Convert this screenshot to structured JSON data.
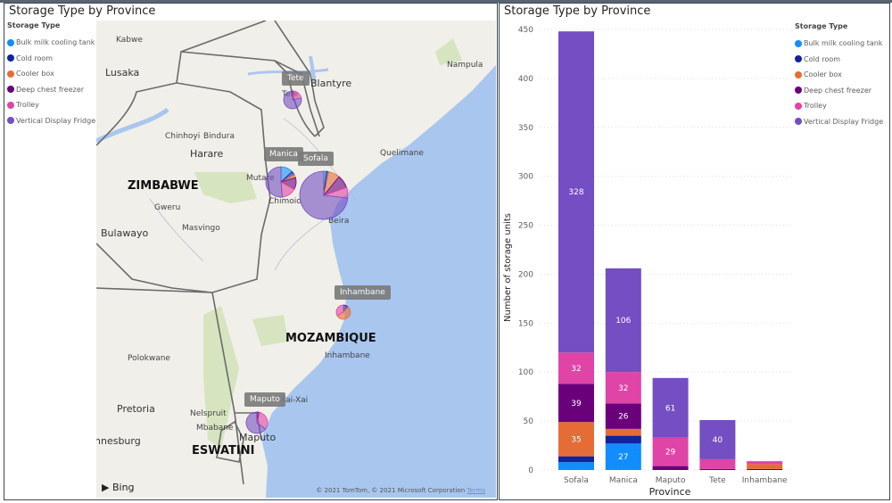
{
  "map_visual": {
    "title": "Storage Type by Province",
    "legend_title": "Storage Type",
    "province_labels": [
      "Tete",
      "Manica",
      "Sofala",
      "Inhambane",
      "Maputo"
    ],
    "cities": [
      "Kabwe",
      "Lusaka",
      "Nampula",
      "Blantyre",
      "Chinhoyi",
      "Bindura",
      "Harare",
      "Quelimane",
      "Mutare",
      "Chimoio",
      "Beira",
      "Gweru",
      "Masvingo",
      "Bulawayo",
      "Polokwane",
      "Inhambane",
      "Xai-Xai",
      "Pretoria",
      "Nelspruit",
      "Mbabane",
      "Maputo",
      "nnesburg",
      "Tete"
    ],
    "countries": [
      "ZIMBABWE",
      "MOZAMBIQUE",
      "ESWATINI"
    ],
    "bing_logo": "Bing",
    "copyright": "© 2021 TomTom, © 2021 Microsoft Corporation",
    "terms_link": "Terms"
  },
  "chart_data": {
    "type": "bar",
    "stacked": true,
    "title": "Storage Type by Province",
    "xlabel": "Province",
    "ylabel": "Number of storage units",
    "ylim": [
      0,
      450
    ],
    "yticks": [
      "0",
      "50",
      "100",
      "150",
      "200",
      "250",
      "300",
      "350",
      "400",
      "450"
    ],
    "grid": true,
    "legend_title": "Storage Type",
    "legend_position": "top-right",
    "categories": [
      "Sofala",
      "Manica",
      "Maputo",
      "Tete",
      "Inhambane"
    ],
    "series": [
      {
        "name": "Bulk milk cooling tank",
        "color": "#118DFF",
        "values": [
          8,
          27,
          0,
          0,
          0
        ]
      },
      {
        "name": "Cold room",
        "color": "#12239E",
        "values": [
          6,
          8,
          0,
          1,
          1
        ]
      },
      {
        "name": "Cooler box",
        "color": "#E66C37",
        "values": [
          35,
          7,
          0,
          0,
          5
        ]
      },
      {
        "name": "Deep chest freezer",
        "color": "#6B007B",
        "values": [
          39,
          26,
          4,
          0,
          0
        ]
      },
      {
        "name": "Trolley",
        "color": "#E044A7",
        "values": [
          32,
          32,
          29,
          10,
          3
        ]
      },
      {
        "name": "Vertical Display Fridge",
        "color": "#744EC2",
        "values": [
          328,
          106,
          61,
          40,
          0
        ]
      }
    ]
  }
}
